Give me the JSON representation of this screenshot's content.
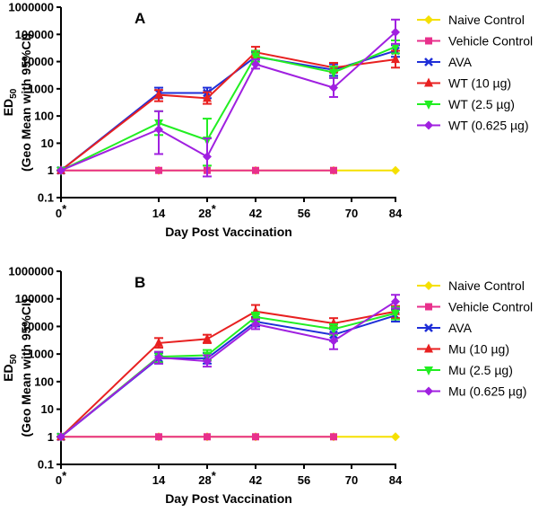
{
  "chart_data": [
    {
      "type": "line",
      "panel_label": "A",
      "xlabel": "Day Post Vaccination",
      "ylabel_line1": "ED",
      "ylabel_sub": "50",
      "ylabel_line2": "(Geo Mean with 95%CI)",
      "x_ticks": [
        0,
        14,
        28,
        42,
        56,
        70,
        84
      ],
      "x_tick_labels": [
        "0*",
        "14",
        "28*",
        "42",
        "56",
        "70",
        "84"
      ],
      "y_ticks": [
        0.1,
        1,
        10,
        100,
        1000,
        10000,
        100000,
        1000000
      ],
      "y_tick_labels": [
        "0.1",
        "1",
        "10",
        "100",
        "1000",
        "10000",
        "100000",
        "1000000"
      ],
      "xlim": [
        0,
        84
      ],
      "ylim": [
        0.1,
        1000000
      ],
      "yscale": "log",
      "dotted_extension": {
        "from_x": 65,
        "to_x": 84,
        "y": 1
      },
      "series": [
        {
          "name": "Naive Control",
          "color": "#f5e000",
          "marker": "diamond",
          "x": [
            0,
            14,
            28,
            42,
            65,
            84
          ],
          "y": [
            1,
            1,
            1,
            1,
            1,
            1
          ],
          "lo": [
            1,
            1,
            1,
            1,
            1,
            1
          ],
          "hi": [
            1,
            1,
            1,
            1,
            1,
            1
          ]
        },
        {
          "name": "Vehicle Control",
          "color": "#e8308c",
          "marker": "square",
          "x": [
            0,
            14,
            28,
            42,
            65
          ],
          "y": [
            1,
            1,
            1,
            1,
            1
          ],
          "lo": [
            1,
            1,
            1,
            1,
            1
          ],
          "hi": [
            1,
            1,
            1,
            1,
            1
          ]
        },
        {
          "name": "AVA",
          "color": "#1f2fd8",
          "marker": "x",
          "x": [
            0,
            14,
            28,
            42,
            65,
            84
          ],
          "y": [
            1,
            700,
            700,
            15000,
            5000,
            25000
          ],
          "lo": [
            1,
            450,
            450,
            10000,
            3000,
            15000
          ],
          "hi": [
            1,
            1100,
            1100,
            22000,
            8000,
            40000
          ]
        },
        {
          "name": "WT (10 µg)",
          "color": "#e82020",
          "marker": "triangle",
          "x": [
            0,
            14,
            28,
            42,
            65,
            84
          ],
          "y": [
            1,
            600,
            450,
            22000,
            6000,
            12000
          ],
          "lo": [
            1,
            350,
            280,
            14000,
            4000,
            6000
          ],
          "hi": [
            1,
            900,
            750,
            35000,
            9000,
            25000
          ]
        },
        {
          "name": "WT (2.5 µg)",
          "color": "#22ee22",
          "marker": "triangle-down",
          "x": [
            0,
            14,
            28,
            42,
            65,
            84
          ],
          "y": [
            1,
            55,
            13,
            16000,
            4000,
            35000
          ],
          "lo": [
            1,
            20,
            1.5,
            10000,
            2500,
            20000
          ],
          "hi": [
            1,
            150,
            80,
            25000,
            6500,
            60000
          ]
        },
        {
          "name": "WT (0.625 µg)",
          "color": "#a020e0",
          "marker": "diamond",
          "x": [
            0,
            14,
            28,
            42,
            65,
            84
          ],
          "y": [
            1,
            32,
            3.2,
            8000,
            1100,
            120000
          ],
          "lo": [
            1,
            4,
            0.6,
            5500,
            500,
            45000
          ],
          "hi": [
            1,
            150,
            15,
            12000,
            2500,
            350000
          ]
        }
      ]
    },
    {
      "type": "line",
      "panel_label": "B",
      "xlabel": "Day Post Vaccination",
      "ylabel_line1": "ED",
      "ylabel_sub": "50",
      "ylabel_line2": "(Geo Mean with 95%CI)",
      "x_ticks": [
        0,
        14,
        28,
        42,
        56,
        70,
        84
      ],
      "x_tick_labels": [
        "0*",
        "14",
        "28*",
        "42",
        "56",
        "70",
        "84"
      ],
      "y_ticks": [
        0.1,
        1,
        10,
        100,
        1000,
        10000,
        100000,
        1000000
      ],
      "y_tick_labels": [
        "0.1",
        "1",
        "10",
        "100",
        "1000",
        "10000",
        "100000",
        "1000000"
      ],
      "xlim": [
        0,
        84
      ],
      "ylim": [
        0.1,
        1000000
      ],
      "yscale": "log",
      "dotted_extension": {
        "from_x": 65,
        "to_x": 84,
        "y": 1
      },
      "series": [
        {
          "name": "Naive Control",
          "color": "#f5e000",
          "marker": "diamond",
          "x": [
            0,
            14,
            28,
            42,
            65,
            84
          ],
          "y": [
            1,
            1,
            1,
            1,
            1,
            1
          ],
          "lo": [
            1,
            1,
            1,
            1,
            1,
            1
          ],
          "hi": [
            1,
            1,
            1,
            1,
            1,
            1
          ]
        },
        {
          "name": "Vehicle Control",
          "color": "#e8308c",
          "marker": "square",
          "x": [
            0,
            14,
            28,
            42,
            65
          ],
          "y": [
            1,
            1,
            1,
            1,
            1
          ],
          "lo": [
            1,
            1,
            1,
            1,
            1
          ],
          "hi": [
            1,
            1,
            1,
            1,
            1
          ]
        },
        {
          "name": "AVA",
          "color": "#1f2fd8",
          "marker": "x",
          "x": [
            0,
            14,
            28,
            42,
            65,
            84
          ],
          "y": [
            1,
            700,
            700,
            15000,
            5000,
            25000
          ],
          "lo": [
            1,
            450,
            450,
            10000,
            3000,
            15000
          ],
          "hi": [
            1,
            1100,
            1100,
            22000,
            8000,
            40000
          ]
        },
        {
          "name": "Mu (10 µg)",
          "color": "#e82020",
          "marker": "triangle",
          "x": [
            0,
            14,
            28,
            42,
            65,
            84
          ],
          "y": [
            1,
            2500,
            3500,
            35000,
            13000,
            35000
          ],
          "lo": [
            1,
            1700,
            2500,
            20000,
            9000,
            20000
          ],
          "hi": [
            1,
            3800,
            5000,
            60000,
            20000,
            55000
          ]
        },
        {
          "name": "Mu (2.5 µg)",
          "color": "#22ee22",
          "marker": "triangle-down",
          "x": [
            0,
            14,
            28,
            42,
            65,
            84
          ],
          "y": [
            1,
            800,
            900,
            22000,
            8000,
            30000
          ],
          "lo": [
            1,
            500,
            600,
            15000,
            5000,
            18000
          ],
          "hi": [
            1,
            1200,
            1400,
            32000,
            12000,
            50000
          ]
        },
        {
          "name": "Mu (0.625 µg)",
          "color": "#a020e0",
          "marker": "diamond",
          "x": [
            0,
            14,
            28,
            42,
            65,
            84
          ],
          "y": [
            1,
            750,
            550,
            12000,
            3000,
            80000
          ],
          "lo": [
            1,
            450,
            350,
            8000,
            1500,
            45000
          ],
          "hi": [
            1,
            1200,
            900,
            18000,
            5500,
            140000
          ]
        }
      ]
    }
  ]
}
